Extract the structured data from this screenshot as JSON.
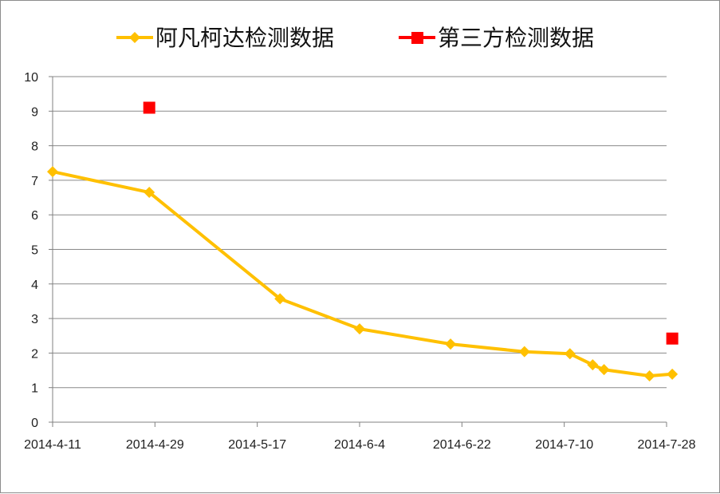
{
  "chart_data": {
    "type": "line",
    "title": "",
    "xlabel": "",
    "ylabel": "",
    "x_tick_labels": [
      "2014-4-11",
      "2014-4-29",
      "2014-5-17",
      "2014-6-4",
      "2014-6-22",
      "2014-7-10",
      "2014-7-28"
    ],
    "y_tick_labels": [
      "0",
      "1",
      "2",
      "3",
      "4",
      "5",
      "6",
      "7",
      "8",
      "9",
      "10"
    ],
    "xlim": [
      "2014-04-11",
      "2014-07-28"
    ],
    "ylim": [
      0,
      10
    ],
    "grid": true,
    "legend_position": "top",
    "series": [
      {
        "name": "阿凡柯达检测数据",
        "color": "#FFC000",
        "marker": "diamond",
        "line": true,
        "points": [
          {
            "x": "2014-04-11",
            "y": 7.25
          },
          {
            "x": "2014-04-28",
            "y": 6.65
          },
          {
            "x": "2014-05-21",
            "y": 3.57
          },
          {
            "x": "2014-06-04",
            "y": 2.7
          },
          {
            "x": "2014-06-20",
            "y": 2.26
          },
          {
            "x": "2014-07-03",
            "y": 2.04
          },
          {
            "x": "2014-07-11",
            "y": 1.98
          },
          {
            "x": "2014-07-15",
            "y": 1.66
          },
          {
            "x": "2014-07-17",
            "y": 1.52
          },
          {
            "x": "2014-07-25",
            "y": 1.34
          },
          {
            "x": "2014-07-29",
            "y": 1.39
          }
        ]
      },
      {
        "name": "第三方检测数据",
        "color": "#FF0000",
        "marker": "square",
        "line": false,
        "points": [
          {
            "x": "2014-04-28",
            "y": 9.1
          },
          {
            "x": "2014-07-29",
            "y": 2.42
          }
        ]
      }
    ]
  }
}
